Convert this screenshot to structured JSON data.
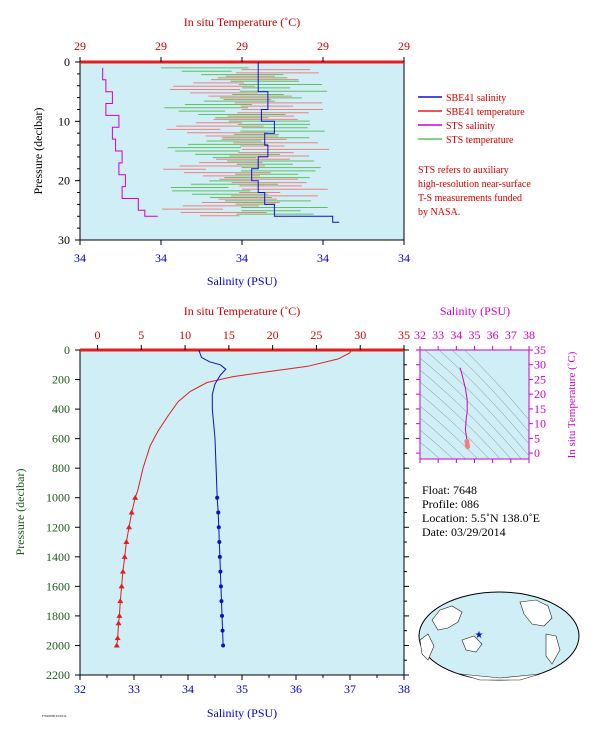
{
  "colors": {
    "plot_bg": "#cfeef5",
    "salinity": "#1010c8",
    "temperature": "#e02020",
    "sts_salinity": "#d000d0",
    "sts_temperature": "#60c060",
    "axis_red": "#d00000",
    "axis_blue": "#0000cc",
    "axis_green": "#1e5a1e",
    "axis_magenta": "#cc00cc"
  },
  "chart_data": [
    {
      "type": "line",
      "name": "top-near-surface",
      "title": "In situ Temperature (˚C)",
      "xlabel": "Salinity (PSU)",
      "ylabel": "Pressure (decibar)",
      "top_ticks": [
        "29",
        "29",
        "29",
        "29",
        "29"
      ],
      "bottom_ticks": [
        "34",
        "34",
        "34",
        "34",
        "34"
      ],
      "y_ticks": [
        "0",
        "10",
        "20",
        "30"
      ],
      "xlim": [
        0,
        1
      ],
      "ylim": [
        0,
        30
      ],
      "legend": [
        {
          "label": "SBE41 salinity",
          "color": "#1010c8"
        },
        {
          "label": "SBE41 temperature",
          "color": "#e02020"
        },
        {
          "label": "STS salinity",
          "color": "#d000d0"
        },
        {
          "label": "STS temperature",
          "color": "#60c060"
        }
      ],
      "note": [
        "STS refers to auxiliary",
        "high-resolution near-surface",
        "T-S measurements funded",
        "by NASA."
      ],
      "series": [
        {
          "name": "SBE41 salinity",
          "x": [
            0.55,
            0.55,
            0.58,
            0.56,
            0.6,
            0.57,
            0.58,
            0.55,
            0.53,
            0.55,
            0.57,
            0.6,
            0.78,
            0.8
          ],
          "y": [
            0,
            3,
            5,
            8,
            10,
            12,
            14,
            16,
            18,
            20,
            22,
            24,
            26,
            27
          ]
        },
        {
          "name": "STS salinity",
          "x": [
            0.07,
            0.08,
            0.1,
            0.08,
            0.12,
            0.1,
            0.11,
            0.13,
            0.12,
            0.14,
            0.13,
            0.18,
            0.2,
            0.22,
            0.24
          ],
          "y": [
            1,
            3,
            5,
            7,
            9,
            11,
            13,
            15,
            17,
            19,
            21,
            23,
            25,
            26,
            26
          ]
        }
      ]
    },
    {
      "type": "line",
      "name": "main-profile",
      "title": "In situ Temperature (˚C)",
      "xlabel": "Salinity (PSU)",
      "ylabel": "Pressure (decibar)",
      "temperature_ticks": [
        "0",
        "5",
        "10",
        "15",
        "20",
        "25",
        "30",
        "35"
      ],
      "temperature_range": [
        -2,
        35
      ],
      "salinity_ticks": [
        "32",
        "33",
        "34",
        "35",
        "36",
        "37",
        "38"
      ],
      "salinity_range": [
        32,
        38
      ],
      "pressure_ticks": [
        "0",
        "200",
        "400",
        "600",
        "800",
        "1000",
        "1200",
        "1400",
        "1600",
        "1800",
        "2000",
        "2200"
      ],
      "ylim": [
        0,
        2200
      ],
      "series": [
        {
          "name": "temperature",
          "x": [
            29.0,
            28.8,
            27.5,
            24.0,
            19.0,
            15.5,
            12.5,
            10.6,
            9.2,
            8.0,
            6.9,
            6.0,
            5.2,
            4.6,
            4.3,
            3.9,
            3.6,
            3.3,
            3.1,
            2.9,
            2.75,
            2.6,
            2.5,
            2.4,
            2.3,
            2.2
          ],
          "y": [
            0,
            20,
            60,
            110,
            150,
            180,
            220,
            280,
            350,
            450,
            550,
            650,
            800,
            950,
            1000,
            1100,
            1200,
            1300,
            1400,
            1500,
            1600,
            1700,
            1800,
            1850,
            1950,
            2000
          ]
        },
        {
          "name": "salinity",
          "x": [
            34.2,
            34.25,
            34.4,
            34.6,
            34.7,
            34.6,
            34.5,
            34.45,
            34.45,
            34.5,
            34.52,
            34.54,
            34.56,
            34.57,
            34.58,
            34.59,
            34.6,
            34.61,
            34.62,
            34.63,
            34.64,
            34.65
          ],
          "y": [
            0,
            50,
            80,
            100,
            130,
            170,
            230,
            300,
            400,
            600,
            800,
            1000,
            1100,
            1200,
            1300,
            1400,
            1500,
            1600,
            1700,
            1800,
            1900,
            2000
          ]
        }
      ]
    },
    {
      "type": "scatter",
      "name": "ts-diagram",
      "title": "Salinity (PSU)",
      "ylabel": "In situ Temperature (˚C)",
      "x_ticks": [
        "32",
        "33",
        "34",
        "35",
        "36",
        "37",
        "38"
      ],
      "xlim": [
        32,
        38
      ],
      "y_ticks": [
        "0",
        "5",
        "10",
        "15",
        "20",
        "25",
        "30",
        "35"
      ],
      "ylim": [
        -2,
        35
      ],
      "series": [
        {
          "name": "T-S",
          "x": [
            34.2,
            34.3,
            34.5,
            34.6,
            34.6,
            34.55,
            34.5,
            34.55,
            34.58,
            34.6,
            34.62
          ],
          "y": [
            29,
            27,
            22,
            18,
            14,
            12,
            8,
            6,
            4,
            3,
            2.2
          ]
        }
      ]
    }
  ],
  "info": {
    "float": "Float:  7648",
    "profile": "Profile:  086",
    "location": "Location:  5.5˚N  138.0˚E",
    "date": "Date:  03/29/2014"
  },
  "footer": "F7648/086 03/29/14"
}
